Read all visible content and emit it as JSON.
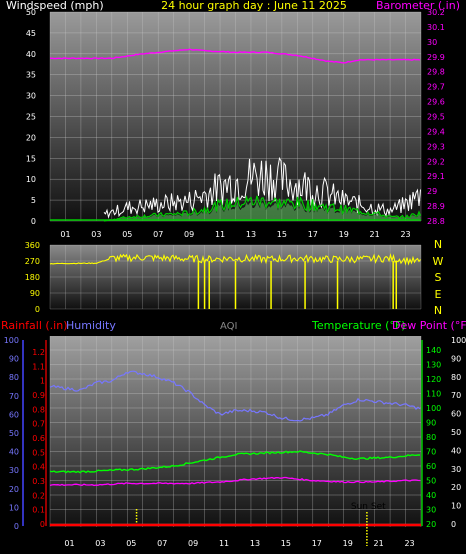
{
  "colors": {
    "wind_avg": "#00cc00",
    "wind_gust": "#ffffff",
    "wind_fill": "#66cc66",
    "barometer": "#ff00ff",
    "direction": "#ffff00",
    "rain": "#ff0000",
    "humidity": "#7777ff",
    "aqi": "#888888",
    "temperature": "#00ff00",
    "dewpoint": "#ff00ff",
    "sunmark": "#ffff00",
    "axis_text": "#ffffff"
  },
  "chart_data": [
    {
      "type": "line",
      "title": "24 hour graph day : June 11 2025",
      "y_left_label": "Windspeed (mph)",
      "y_right_label": "Barometer (.in)",
      "x_ticks": [
        "01",
        "03",
        "05",
        "07",
        "09",
        "11",
        "13",
        "15",
        "17",
        "19",
        "21",
        "23"
      ],
      "y_left_ticks": [
        "0",
        "5",
        "10",
        "15",
        "20",
        "25",
        "30",
        "35",
        "40",
        "45",
        "50"
      ],
      "y_left_range": [
        0,
        50
      ],
      "y_right_ticks": [
        "28.8",
        "28.9",
        "29",
        "29.1",
        "29.2",
        "29.3",
        "29.4",
        "29.5",
        "29.6",
        "29.7",
        "29.8",
        "29.9",
        "30",
        "30.1",
        "30.2"
      ],
      "y_right_range": [
        28.8,
        30.2
      ],
      "series": [
        {
          "name": "Barometer (.in)",
          "axis": "right",
          "x": [
            0,
            2,
            4,
            6,
            8,
            9,
            10,
            12,
            14,
            16,
            17,
            18,
            19,
            20,
            22,
            24
          ],
          "values": [
            29.89,
            29.89,
            29.89,
            29.92,
            29.94,
            29.95,
            29.94,
            29.93,
            29.93,
            29.91,
            29.89,
            29.87,
            29.86,
            29.88,
            29.88,
            29.88
          ]
        },
        {
          "name": "Wind gust",
          "axis": "left",
          "x": [
            3.5,
            5,
            7,
            9,
            10,
            11,
            12,
            13,
            14,
            15,
            16,
            17,
            18,
            19,
            20,
            21,
            22,
            23,
            24
          ],
          "values": [
            2,
            4,
            5,
            6,
            8,
            10,
            12,
            13,
            14,
            12,
            11,
            10,
            8,
            6,
            5,
            4,
            3,
            5,
            8
          ]
        },
        {
          "name": "Wind avg",
          "axis": "left",
          "x": [
            3.5,
            5,
            7,
            9,
            10,
            11,
            12,
            13,
            14,
            15,
            16,
            17,
            18,
            19,
            20,
            21,
            22,
            23,
            24
          ],
          "values": [
            0,
            1,
            1.5,
            2,
            3,
            4,
            4.5,
            5,
            5,
            4.5,
            4.5,
            4,
            3.5,
            3,
            2.5,
            2,
            1,
            1,
            2
          ]
        }
      ]
    },
    {
      "type": "scatter",
      "title": "",
      "x_ticks": [],
      "y_left_ticks": [
        "0",
        "90",
        "180",
        "270",
        "360"
      ],
      "y_left_range": [
        0,
        360
      ],
      "y_right_ticks": [
        "N",
        "W",
        "S",
        "E",
        "N"
      ],
      "series": [
        {
          "name": "Wind direction",
          "axis": "left",
          "x": [
            0,
            3,
            4,
            6,
            8,
            10,
            12,
            14,
            16,
            18,
            20,
            22,
            24
          ],
          "values": [
            255,
            258,
            285,
            290,
            285,
            280,
            285,
            280,
            285,
            280,
            280,
            285,
            265
          ]
        }
      ],
      "dips_x": [
        9.6,
        10,
        10.3,
        12,
        14.3,
        16.5,
        18.6,
        22.2,
        22.4
      ]
    },
    {
      "type": "line",
      "title": "",
      "labels": {
        "rainfall": "Rainfall (.in)",
        "humidity": "Humidity",
        "aqi": "AQI",
        "temperature": "Temperature (°F)",
        "dewpoint": "Dew Point (°F)"
      },
      "x_ticks": [
        "01",
        "03",
        "05",
        "07",
        "09",
        "11",
        "13",
        "15",
        "17",
        "19",
        "21",
        "23"
      ],
      "humidity_ticks": [
        "0",
        "10",
        "20",
        "30",
        "40",
        "50",
        "60",
        "70",
        "80",
        "90",
        "100"
      ],
      "rain_ticks": [
        "0",
        "0.1",
        "0.2",
        "0.3",
        "0.4",
        "0.5",
        "0.6",
        "0.7",
        "0.8",
        "0.9",
        "1",
        "1.1",
        "1.2"
      ],
      "temp_ticks": [
        "20",
        "30",
        "40",
        "50",
        "60",
        "70",
        "80",
        "90",
        "100",
        "110",
        "120",
        "130",
        "140"
      ],
      "dew_ticks": [
        "0",
        "10",
        "20",
        "30",
        "40",
        "50",
        "60",
        "70",
        "80",
        "90",
        "100"
      ],
      "sunset_label": "Sun Set",
      "sunrise_x": 5.6,
      "sunset_x": 20.5,
      "series": [
        {
          "name": "Humidity",
          "axis": "humidity",
          "x": [
            0,
            2,
            3,
            4,
            5,
            6,
            7,
            8,
            9,
            10,
            11,
            12,
            13,
            14,
            15,
            16,
            17,
            18,
            19,
            20,
            21,
            22,
            23,
            24
          ],
          "values": [
            75,
            73,
            77,
            78,
            83,
            82,
            80,
            77,
            72,
            65,
            60,
            62,
            62,
            61,
            58,
            57,
            58,
            60,
            65,
            68,
            67,
            66,
            65,
            63
          ]
        },
        {
          "name": "Temperature (°F)",
          "axis": "temp",
          "x": [
            0,
            2,
            4,
            6,
            8,
            10,
            12,
            14,
            16,
            18,
            19,
            20,
            22,
            24
          ],
          "values": [
            56,
            56,
            57,
            58,
            60,
            64,
            68,
            69,
            70,
            68,
            66,
            65,
            66,
            68
          ]
        },
        {
          "name": "Dew Point (°F)",
          "axis": "temp",
          "x": [
            0,
            3,
            5,
            7,
            9,
            11,
            13,
            15,
            16,
            17,
            19,
            21,
            23,
            24
          ],
          "values": [
            47,
            47,
            48,
            48,
            48,
            49,
            51,
            52,
            51,
            50,
            49,
            49,
            50,
            50
          ]
        },
        {
          "name": "Rainfall (.in)",
          "axis": "rain",
          "x": [
            0,
            24
          ],
          "values": [
            0,
            0
          ]
        }
      ]
    }
  ]
}
